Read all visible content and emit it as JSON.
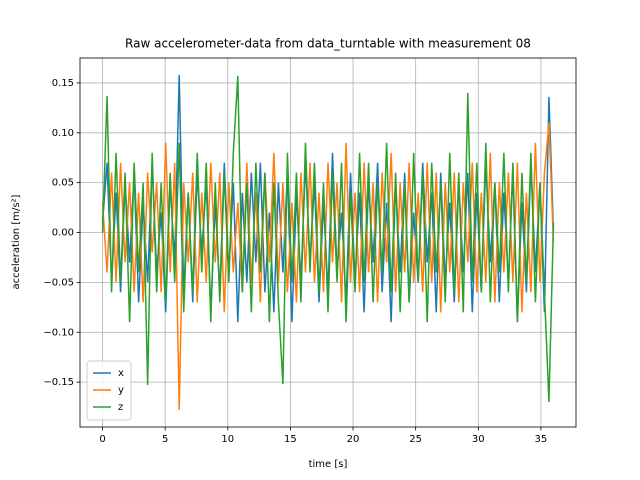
{
  "chart_data": {
    "type": "line",
    "title": "Raw accelerometer-data from data_turntable with measurement 08",
    "xlabel": "time [s]",
    "ylabel": "acceleration [m/s²]",
    "x": [
      0,
      0.36,
      0.72,
      1.08,
      1.44,
      1.8,
      2.16,
      2.52,
      2.88,
      3.24,
      3.6,
      3.96,
      4.32,
      4.68,
      5.04,
      5.4,
      5.76,
      6.12,
      6.48,
      6.84,
      7.2,
      7.56,
      7.92,
      8.28,
      8.64,
      9,
      9.36,
      9.72,
      10.08,
      10.44,
      10.8,
      11.16,
      11.52,
      11.88,
      12.24,
      12.6,
      12.96,
      13.32,
      13.68,
      14.04,
      14.4,
      14.76,
      15.12,
      15.48,
      15.84,
      16.2,
      16.56,
      16.92,
      17.28,
      17.64,
      18,
      18.36,
      18.72,
      19.08,
      19.44,
      19.8,
      20.16,
      20.52,
      20.88,
      21.24,
      21.6,
      21.96,
      22.32,
      22.68,
      23.04,
      23.4,
      23.76,
      24.12,
      24.48,
      24.84,
      25.2,
      25.56,
      25.92,
      26.28,
      26.64,
      27,
      27.36,
      27.72,
      28.08,
      28.44,
      28.8,
      29.16,
      29.52,
      29.88,
      30.24,
      30.6,
      30.96,
      31.32,
      31.68,
      32.04,
      32.4,
      32.76,
      33.12,
      33.48,
      33.84,
      34.2,
      34.56,
      34.92,
      35.28,
      35.64,
      36
    ],
    "series": [
      {
        "name": "x",
        "color": "#1f77b4",
        "values": [
          0.01,
          0.07,
          -0.05,
          0.04,
          -0.06,
          0.05,
          -0.03,
          0.06,
          -0.07,
          0.03,
          -0.05,
          0.07,
          -0.04,
          0.02,
          -0.08,
          0.05,
          -0.03,
          0.158,
          -0.06,
          0.04,
          -0.07,
          0.06,
          -0.02,
          0.05,
          -0.08,
          0.03,
          -0.06,
          0.07,
          -0.04,
          0.05,
          -0.09,
          0.04,
          -0.05,
          0.06,
          -0.03,
          0.07,
          -0.06,
          0.02,
          -0.08,
          0.05,
          -0.04,
          0.06,
          -0.09,
          0.04,
          -0.05,
          0.07,
          -0.03,
          0.05,
          -0.07,
          0.03,
          -0.06,
          0.08,
          -0.04,
          0.02,
          -0.07,
          0.06,
          -0.05,
          0.04,
          -0.08,
          0.05,
          -0.03,
          0.07,
          -0.06,
          0.03,
          -0.09,
          0.05,
          -0.04,
          0.06,
          -0.07,
          0.02,
          -0.05,
          0.07,
          -0.03,
          0.04,
          -0.08,
          0.06,
          -0.05,
          0.03,
          -0.07,
          0.05,
          -0.04,
          0.06,
          -0.08,
          0.04,
          -0.06,
          0.07,
          -0.03,
          0.05,
          -0.07,
          0.04,
          -0.05,
          0.06,
          -0.09,
          0.03,
          -0.06,
          0.07,
          -0.04,
          0.05,
          -0.08,
          0.136,
          0.0
        ]
      },
      {
        "name": "y",
        "color": "#ff7f0e",
        "values": [
          0.03,
          -0.04,
          0.06,
          -0.05,
          0.07,
          -0.03,
          0.05,
          -0.06,
          0.04,
          -0.07,
          0.06,
          -0.02,
          0.05,
          -0.06,
          0.09,
          -0.04,
          0.07,
          -0.178,
          0.05,
          -0.03,
          0.06,
          -0.07,
          0.04,
          -0.05,
          0.07,
          -0.03,
          0.06,
          -0.08,
          0.05,
          -0.04,
          0.03,
          -0.06,
          0.07,
          -0.05,
          0.04,
          -0.07,
          0.06,
          -0.03,
          0.08,
          -0.05,
          0.05,
          -0.06,
          0.03,
          -0.07,
          0.06,
          -0.04,
          0.07,
          -0.05,
          0.04,
          -0.06,
          0.07,
          -0.03,
          0.05,
          -0.07,
          0.09,
          -0.05,
          0.04,
          -0.06,
          0.07,
          -0.04,
          0.05,
          -0.07,
          0.06,
          -0.03,
          0.08,
          -0.06,
          0.05,
          -0.04,
          0.07,
          -0.05,
          0.04,
          -0.06,
          0.07,
          -0.05,
          0.06,
          -0.08,
          0.05,
          -0.04,
          0.06,
          -0.07,
          0.05,
          -0.03,
          0.07,
          -0.06,
          0.04,
          -0.05,
          0.08,
          -0.07,
          0.05,
          -0.04,
          0.06,
          -0.05,
          0.07,
          -0.08,
          0.04,
          -0.06,
          0.09,
          -0.05,
          0.06,
          0.11,
          -0.01
        ]
      },
      {
        "name": "z",
        "color": "#2ca02c",
        "values": [
          0.0,
          0.137,
          -0.06,
          0.08,
          -0.05,
          0.06,
          -0.09,
          0.07,
          -0.04,
          0.05,
          -0.153,
          0.08,
          -0.06,
          0.05,
          -0.07,
          0.06,
          -0.05,
          0.09,
          -0.08,
          0.04,
          -0.06,
          0.08,
          -0.04,
          0.07,
          -0.09,
          0.05,
          -0.07,
          0.06,
          -0.05,
          0.08,
          0.157,
          -0.06,
          0.05,
          -0.08,
          0.07,
          -0.04,
          0.06,
          -0.09,
          0.05,
          -0.07,
          -0.152,
          0.08,
          -0.05,
          0.06,
          -0.07,
          0.09,
          -0.04,
          0.07,
          -0.06,
          0.05,
          -0.08,
          0.06,
          -0.05,
          0.07,
          -0.09,
          0.04,
          -0.06,
          0.08,
          -0.05,
          0.07,
          -0.07,
          0.05,
          -0.04,
          0.09,
          -0.06,
          0.06,
          -0.08,
          0.05,
          -0.07,
          0.08,
          -0.05,
          0.06,
          -0.09,
          0.07,
          -0.04,
          0.05,
          -0.07,
          0.08,
          -0.06,
          0.06,
          -0.08,
          0.14,
          -0.05,
          0.07,
          -0.06,
          0.09,
          -0.07,
          0.05,
          -0.04,
          0.08,
          -0.06,
          0.07,
          -0.09,
          0.06,
          -0.05,
          0.08,
          -0.07,
          0.05,
          -0.06,
          -0.17,
          0.01
        ]
      }
    ],
    "xlim": [
      -1.8,
      37.8
    ],
    "ylim": [
      -0.195,
      0.175
    ],
    "xticks": [
      0,
      5,
      10,
      15,
      20,
      25,
      30,
      35
    ],
    "yticks": [
      {
        "value": -0.15,
        "label": "−0.15"
      },
      {
        "value": -0.1,
        "label": "−0.10"
      },
      {
        "value": -0.05,
        "label": "−0.05"
      },
      {
        "value": 0,
        "label": "0.00"
      },
      {
        "value": 0.05,
        "label": "0.05"
      },
      {
        "value": 0.1,
        "label": "0.10"
      },
      {
        "value": 0.15,
        "label": "0.15"
      }
    ],
    "grid": true,
    "legend": "lower left"
  }
}
